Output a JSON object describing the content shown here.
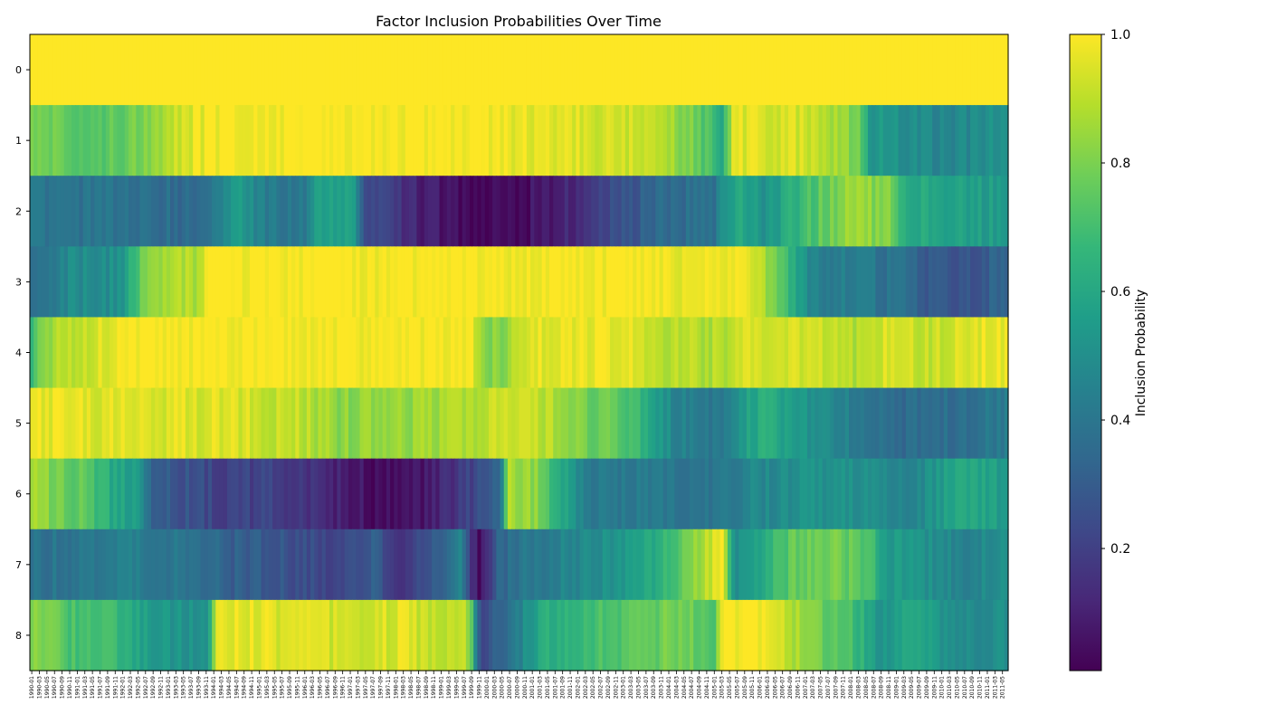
{
  "chart_data": {
    "type": "heatmap",
    "title": "Factor Inclusion Probabilities Over Time",
    "xlabel": "",
    "ylabel": "",
    "colorbar": {
      "label": "Inclusion Probability",
      "colormap": "viridis",
      "range": [
        0.01,
        1.0
      ],
      "ticks": [
        0.2,
        0.4,
        0.6,
        0.8,
        1.0
      ],
      "tick_labels": [
        "0.2",
        "0.4",
        "0.6",
        "0.8",
        "1.0"
      ]
    },
    "rows": [
      "0",
      "1",
      "2",
      "3",
      "4",
      "5",
      "6",
      "7",
      "8"
    ],
    "x_start_month": "1990-01",
    "x_count": 258,
    "x_tick_step": 2,
    "x_tick_note": "x tick labels are dense monthly dates rotated 90 degrees (illegible in source)",
    "x_label_format": "YYYY-MM",
    "profiles": [
      [
        [
          0,
          1.0
        ],
        [
          1,
          1.0
        ]
      ],
      [
        [
          0,
          0.82
        ],
        [
          0.05,
          0.72
        ],
        [
          0.1,
          0.78
        ],
        [
          0.16,
          0.95
        ],
        [
          0.2,
          1.0
        ],
        [
          0.45,
          1.0
        ],
        [
          0.5,
          0.97
        ],
        [
          0.64,
          0.92
        ],
        [
          0.68,
          0.78
        ],
        [
          0.71,
          0.62
        ],
        [
          0.72,
          0.95
        ],
        [
          0.78,
          0.95
        ],
        [
          0.82,
          0.88
        ],
        [
          0.85,
          0.78
        ],
        [
          0.86,
          0.55
        ],
        [
          0.9,
          0.5
        ],
        [
          0.94,
          0.45
        ],
        [
          1,
          0.52
        ]
      ],
      [
        [
          0,
          0.4
        ],
        [
          0.1,
          0.38
        ],
        [
          0.18,
          0.35
        ],
        [
          0.21,
          0.55
        ],
        [
          0.24,
          0.42
        ],
        [
          0.28,
          0.4
        ],
        [
          0.29,
          0.58
        ],
        [
          0.33,
          0.55
        ],
        [
          0.34,
          0.25
        ],
        [
          0.4,
          0.1
        ],
        [
          0.45,
          0.02
        ],
        [
          0.5,
          0.04
        ],
        [
          0.55,
          0.12
        ],
        [
          0.6,
          0.25
        ],
        [
          0.65,
          0.35
        ],
        [
          0.7,
          0.38
        ],
        [
          0.71,
          0.55
        ],
        [
          0.73,
          0.62
        ],
        [
          0.75,
          0.5
        ],
        [
          0.8,
          0.72
        ],
        [
          0.84,
          0.85
        ],
        [
          0.88,
          0.8
        ],
        [
          0.9,
          0.62
        ],
        [
          0.94,
          0.58
        ],
        [
          1,
          0.55
        ]
      ],
      [
        [
          0,
          0.35
        ],
        [
          0.04,
          0.48
        ],
        [
          0.09,
          0.5
        ],
        [
          0.12,
          0.85
        ],
        [
          0.17,
          0.88
        ],
        [
          0.18,
          1.0
        ],
        [
          0.6,
          1.0
        ],
        [
          0.68,
          0.97
        ],
        [
          0.71,
          0.95
        ],
        [
          0.72,
          1.0
        ],
        [
          0.74,
          0.96
        ],
        [
          0.76,
          0.8
        ],
        [
          0.78,
          0.62
        ],
        [
          0.8,
          0.45
        ],
        [
          0.85,
          0.42
        ],
        [
          0.9,
          0.35
        ],
        [
          0.92,
          0.3
        ],
        [
          0.95,
          0.25
        ],
        [
          1,
          0.35
        ]
      ],
      [
        [
          0,
          0.62
        ],
        [
          0.01,
          0.85
        ],
        [
          0.05,
          0.9
        ],
        [
          0.08,
          0.97
        ],
        [
          0.1,
          1.0
        ],
        [
          0.45,
          1.0
        ],
        [
          0.46,
          0.85
        ],
        [
          0.48,
          0.8
        ],
        [
          0.5,
          0.95
        ],
        [
          0.6,
          0.97
        ],
        [
          0.65,
          0.9
        ],
        [
          0.7,
          0.88
        ],
        [
          0.75,
          0.95
        ],
        [
          0.8,
          0.92
        ],
        [
          0.85,
          0.88
        ],
        [
          0.88,
          0.95
        ],
        [
          0.92,
          0.9
        ],
        [
          0.96,
          0.95
        ],
        [
          1,
          0.98
        ]
      ],
      [
        [
          0,
          0.97
        ],
        [
          0.06,
          0.95
        ],
        [
          0.2,
          0.95
        ],
        [
          0.28,
          0.9
        ],
        [
          0.32,
          0.82
        ],
        [
          0.4,
          0.85
        ],
        [
          0.48,
          0.92
        ],
        [
          0.53,
          0.9
        ],
        [
          0.56,
          0.8
        ],
        [
          0.6,
          0.75
        ],
        [
          0.63,
          0.65
        ],
        [
          0.66,
          0.45
        ],
        [
          0.71,
          0.4
        ],
        [
          0.73,
          0.55
        ],
        [
          0.75,
          0.62
        ],
        [
          0.8,
          0.5
        ],
        [
          0.85,
          0.42
        ],
        [
          0.9,
          0.35
        ],
        [
          0.95,
          0.38
        ],
        [
          1,
          0.42
        ]
      ],
      [
        [
          0,
          0.85
        ],
        [
          0.05,
          0.75
        ],
        [
          0.08,
          0.62
        ],
        [
          0.11,
          0.55
        ],
        [
          0.12,
          0.35
        ],
        [
          0.15,
          0.28
        ],
        [
          0.2,
          0.2
        ],
        [
          0.25,
          0.22
        ],
        [
          0.3,
          0.12
        ],
        [
          0.35,
          0.05
        ],
        [
          0.38,
          0.02
        ],
        [
          0.42,
          0.12
        ],
        [
          0.46,
          0.25
        ],
        [
          0.48,
          0.35
        ],
        [
          0.49,
          0.88
        ],
        [
          0.52,
          0.82
        ],
        [
          0.55,
          0.55
        ],
        [
          0.58,
          0.4
        ],
        [
          0.62,
          0.42
        ],
        [
          0.67,
          0.4
        ],
        [
          0.7,
          0.38
        ],
        [
          0.73,
          0.45
        ],
        [
          0.77,
          0.5
        ],
        [
          0.82,
          0.52
        ],
        [
          0.87,
          0.48
        ],
        [
          0.9,
          0.42
        ],
        [
          0.93,
          0.55
        ],
        [
          0.96,
          0.6
        ],
        [
          1,
          0.55
        ]
      ],
      [
        [
          0,
          0.38
        ],
        [
          0.05,
          0.4
        ],
        [
          0.1,
          0.45
        ],
        [
          0.15,
          0.4
        ],
        [
          0.2,
          0.32
        ],
        [
          0.25,
          0.28
        ],
        [
          0.3,
          0.22
        ],
        [
          0.35,
          0.3
        ],
        [
          0.38,
          0.15
        ],
        [
          0.42,
          0.3
        ],
        [
          0.44,
          0.45
        ],
        [
          0.45,
          0.2
        ],
        [
          0.46,
          0.02
        ],
        [
          0.48,
          0.35
        ],
        [
          0.52,
          0.42
        ],
        [
          0.58,
          0.5
        ],
        [
          0.62,
          0.55
        ],
        [
          0.66,
          0.72
        ],
        [
          0.69,
          0.88
        ],
        [
          0.71,
          1.0
        ],
        [
          0.72,
          0.5
        ],
        [
          0.75,
          0.62
        ],
        [
          0.78,
          0.75
        ],
        [
          0.82,
          0.8
        ],
        [
          0.86,
          0.7
        ],
        [
          0.88,
          0.55
        ],
        [
          0.92,
          0.5
        ],
        [
          0.96,
          0.45
        ],
        [
          1,
          0.5
        ]
      ],
      [
        [
          0,
          0.82
        ],
        [
          0.04,
          0.72
        ],
        [
          0.08,
          0.68
        ],
        [
          0.12,
          0.55
        ],
        [
          0.18,
          0.5
        ],
        [
          0.19,
          0.97
        ],
        [
          0.25,
          0.95
        ],
        [
          0.32,
          0.92
        ],
        [
          0.38,
          0.95
        ],
        [
          0.42,
          0.9
        ],
        [
          0.44,
          0.92
        ],
        [
          0.45,
          0.85
        ],
        [
          0.46,
          0.22
        ],
        [
          0.48,
          0.35
        ],
        [
          0.5,
          0.45
        ],
        [
          0.52,
          0.6
        ],
        [
          0.56,
          0.68
        ],
        [
          0.6,
          0.72
        ],
        [
          0.63,
          0.75
        ],
        [
          0.66,
          0.8
        ],
        [
          0.7,
          0.72
        ],
        [
          0.71,
          1.0
        ],
        [
          0.74,
          1.0
        ],
        [
          0.77,
          0.92
        ],
        [
          0.8,
          0.8
        ],
        [
          0.84,
          0.72
        ],
        [
          0.87,
          0.52
        ],
        [
          0.9,
          0.6
        ],
        [
          0.95,
          0.48
        ],
        [
          1,
          0.5
        ]
      ]
    ]
  }
}
